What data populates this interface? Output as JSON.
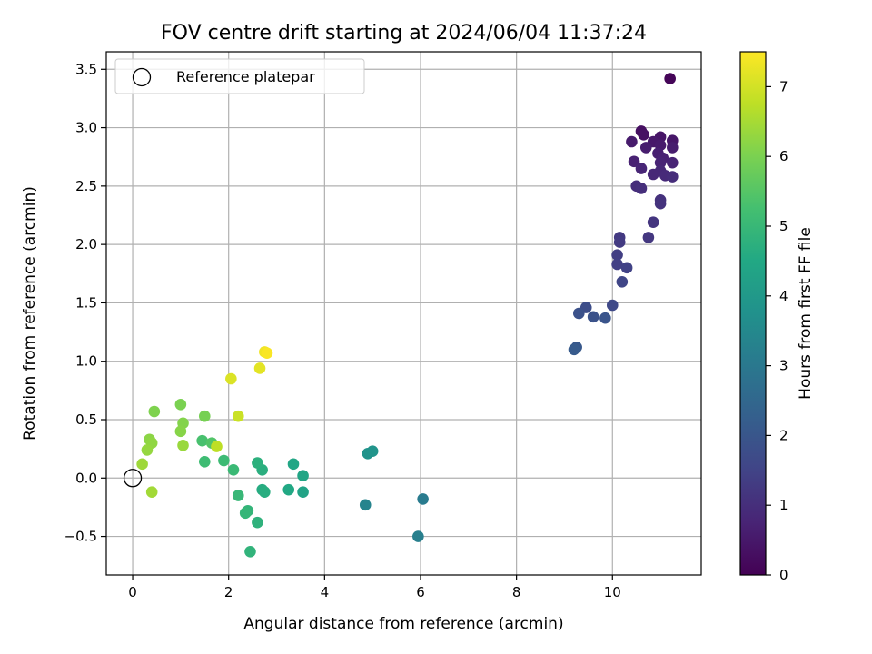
{
  "chart_data": {
    "type": "scatter",
    "title": "FOV centre drift starting at 2024/06/04 11:37:24",
    "xlabel": "Angular distance from reference (arcmin)",
    "ylabel": "Rotation from reference (arcmin)",
    "xlim": [
      -0.55,
      11.85
    ],
    "ylim": [
      -0.83,
      3.65
    ],
    "xticks": [
      0,
      2,
      4,
      6,
      8,
      10
    ],
    "yticks": [
      -0.5,
      0.0,
      0.5,
      1.0,
      1.5,
      2.0,
      2.5,
      3.0,
      3.5
    ],
    "ytick_labels": [
      "−0.5",
      "0.0",
      "0.5",
      "1.0",
      "1.5",
      "2.0",
      "2.5",
      "3.0",
      "3.5"
    ],
    "grid": true,
    "legend": {
      "position": "top-left",
      "entries": [
        "Reference platepar"
      ]
    },
    "reference_point": {
      "x": 0,
      "y": 0
    },
    "colorbar": {
      "label": "Hours from first FF file",
      "range": [
        0,
        7.5
      ],
      "ticks": [
        0,
        1,
        2,
        3,
        4,
        5,
        6,
        7
      ],
      "colormap": "viridis"
    },
    "points": [
      {
        "x": 11.2,
        "y": 3.42,
        "c": 0.1
      },
      {
        "x": 10.6,
        "y": 2.97,
        "c": 0.3
      },
      {
        "x": 10.65,
        "y": 2.94,
        "c": 0.35
      },
      {
        "x": 11.0,
        "y": 2.92,
        "c": 0.4
      },
      {
        "x": 11.25,
        "y": 2.89,
        "c": 0.45
      },
      {
        "x": 10.85,
        "y": 2.88,
        "c": 0.5
      },
      {
        "x": 10.4,
        "y": 2.88,
        "c": 0.55
      },
      {
        "x": 11.0,
        "y": 2.85,
        "c": 0.55
      },
      {
        "x": 10.7,
        "y": 2.83,
        "c": 0.6
      },
      {
        "x": 11.25,
        "y": 2.83,
        "c": 0.6
      },
      {
        "x": 10.95,
        "y": 2.78,
        "c": 0.65
      },
      {
        "x": 11.05,
        "y": 2.74,
        "c": 0.7
      },
      {
        "x": 10.45,
        "y": 2.71,
        "c": 0.7
      },
      {
        "x": 11.0,
        "y": 2.7,
        "c": 0.75
      },
      {
        "x": 11.25,
        "y": 2.7,
        "c": 0.75
      },
      {
        "x": 10.6,
        "y": 2.65,
        "c": 0.8
      },
      {
        "x": 11.0,
        "y": 2.63,
        "c": 0.85
      },
      {
        "x": 10.85,
        "y": 2.6,
        "c": 0.85
      },
      {
        "x": 11.1,
        "y": 2.59,
        "c": 0.9
      },
      {
        "x": 11.25,
        "y": 2.58,
        "c": 0.95
      },
      {
        "x": 10.5,
        "y": 2.5,
        "c": 0.95
      },
      {
        "x": 10.6,
        "y": 2.48,
        "c": 1.0
      },
      {
        "x": 11.0,
        "y": 2.38,
        "c": 1.05
      },
      {
        "x": 11.0,
        "y": 2.35,
        "c": 1.1
      },
      {
        "x": 10.85,
        "y": 2.19,
        "c": 1.15
      },
      {
        "x": 10.75,
        "y": 2.06,
        "c": 1.2
      },
      {
        "x": 10.15,
        "y": 2.06,
        "c": 1.25
      },
      {
        "x": 10.15,
        "y": 2.02,
        "c": 1.3
      },
      {
        "x": 10.1,
        "y": 1.91,
        "c": 1.35
      },
      {
        "x": 10.1,
        "y": 1.83,
        "c": 1.4
      },
      {
        "x": 10.3,
        "y": 1.8,
        "c": 1.45
      },
      {
        "x": 10.2,
        "y": 1.68,
        "c": 1.55
      },
      {
        "x": 10.0,
        "y": 1.48,
        "c": 1.65
      },
      {
        "x": 9.45,
        "y": 1.46,
        "c": 1.75
      },
      {
        "x": 9.3,
        "y": 1.41,
        "c": 1.85
      },
      {
        "x": 9.6,
        "y": 1.38,
        "c": 1.9
      },
      {
        "x": 9.85,
        "y": 1.37,
        "c": 1.95
      },
      {
        "x": 9.25,
        "y": 1.12,
        "c": 2.05
      },
      {
        "x": 9.2,
        "y": 1.1,
        "c": 2.15
      },
      {
        "x": 6.05,
        "y": -0.18,
        "c": 3.1
      },
      {
        "x": 5.95,
        "y": -0.5,
        "c": 3.2
      },
      {
        "x": 4.85,
        "y": -0.23,
        "c": 3.35
      },
      {
        "x": 4.9,
        "y": 0.21,
        "c": 3.8
      },
      {
        "x": 5.0,
        "y": 0.23,
        "c": 3.85
      },
      {
        "x": 3.55,
        "y": -0.12,
        "c": 4.35
      },
      {
        "x": 3.55,
        "y": 0.02,
        "c": 4.4
      },
      {
        "x": 3.35,
        "y": 0.12,
        "c": 4.45
      },
      {
        "x": 3.25,
        "y": -0.1,
        "c": 4.5
      },
      {
        "x": 2.7,
        "y": -0.1,
        "c": 4.6
      },
      {
        "x": 2.75,
        "y": -0.12,
        "c": 4.65
      },
      {
        "x": 2.7,
        "y": 0.07,
        "c": 4.7
      },
      {
        "x": 2.6,
        "y": 0.13,
        "c": 4.75
      },
      {
        "x": 2.6,
        "y": -0.38,
        "c": 4.8
      },
      {
        "x": 2.45,
        "y": -0.63,
        "c": 4.85
      },
      {
        "x": 2.4,
        "y": -0.28,
        "c": 4.9
      },
      {
        "x": 2.35,
        "y": -0.3,
        "c": 4.95
      },
      {
        "x": 2.2,
        "y": -0.15,
        "c": 5.0
      },
      {
        "x": 2.1,
        "y": 0.07,
        "c": 5.05
      },
      {
        "x": 1.9,
        "y": 0.15,
        "c": 5.1
      },
      {
        "x": 1.5,
        "y": 0.14,
        "c": 5.15
      },
      {
        "x": 1.45,
        "y": 0.32,
        "c": 5.3
      },
      {
        "x": 1.65,
        "y": 0.3,
        "c": 5.45
      },
      {
        "x": 1.5,
        "y": 0.53,
        "c": 5.95
      },
      {
        "x": 1.0,
        "y": 0.63,
        "c": 6.0
      },
      {
        "x": 0.45,
        "y": 0.57,
        "c": 6.05
      },
      {
        "x": 1.05,
        "y": 0.47,
        "c": 6.1
      },
      {
        "x": 1.0,
        "y": 0.4,
        "c": 6.15
      },
      {
        "x": 0.35,
        "y": 0.33,
        "c": 6.2
      },
      {
        "x": 0.4,
        "y": 0.3,
        "c": 6.25
      },
      {
        "x": 0.3,
        "y": 0.24,
        "c": 6.3
      },
      {
        "x": 1.05,
        "y": 0.28,
        "c": 6.35
      },
      {
        "x": 0.2,
        "y": 0.12,
        "c": 6.4
      },
      {
        "x": 0.4,
        "y": -0.12,
        "c": 6.45
      },
      {
        "x": 1.75,
        "y": 0.27,
        "c": 6.75
      },
      {
        "x": 2.2,
        "y": 0.53,
        "c": 6.9
      },
      {
        "x": 2.05,
        "y": 0.85,
        "c": 7.1
      },
      {
        "x": 2.65,
        "y": 0.94,
        "c": 7.2
      },
      {
        "x": 2.75,
        "y": 1.08,
        "c": 7.35
      },
      {
        "x": 2.8,
        "y": 1.07,
        "c": 7.45
      }
    ]
  }
}
